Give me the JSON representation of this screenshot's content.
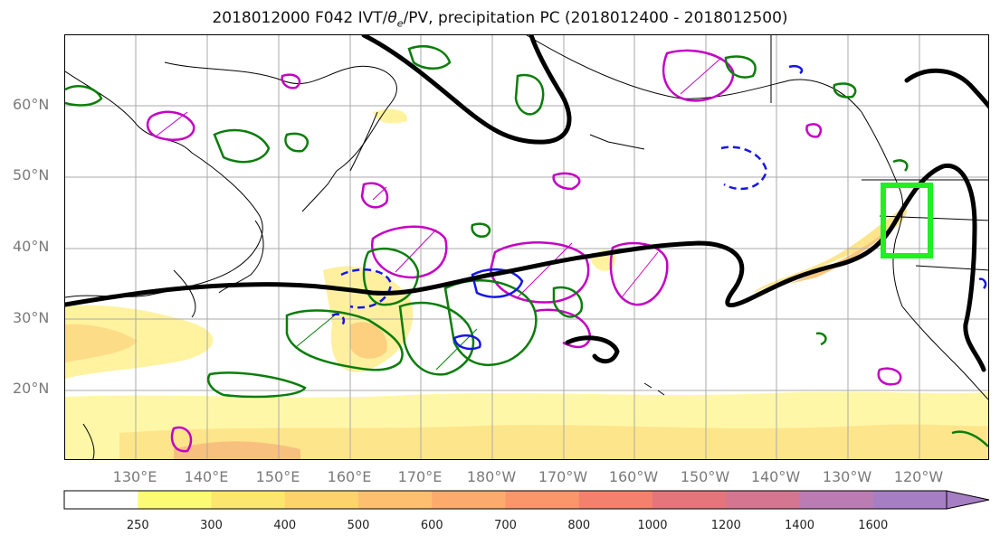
{
  "title": {
    "prefix": "2018012000 F042 IVT/",
    "theta": "θ",
    "sub": "e",
    "suffix": "/PV, precipitation PC (2018012400 - 2018012500)"
  },
  "lat_labels": [
    "60°N",
    "50°N",
    "40°N",
    "30°N",
    "20°N"
  ],
  "lon_labels": [
    "130°E",
    "140°E",
    "150°E",
    "160°E",
    "170°E",
    "180°W",
    "170°W",
    "160°W",
    "150°W",
    "140°W",
    "130°W",
    "120°W"
  ],
  "colorbar": {
    "ticks": [
      "250",
      "300",
      "400",
      "500",
      "600",
      "700",
      "800",
      "1000",
      "1200",
      "1400",
      "1600"
    ],
    "colors": [
      "#ffffff",
      "#fdfb74",
      "#fde66e",
      "#fed36c",
      "#febf6e",
      "#fdab6d",
      "#fb966b",
      "#f3816b",
      "#e4757c",
      "#d47692",
      "#bb7cb3",
      "#a67ec4"
    ]
  },
  "colors": {
    "ivt_low": "#fff5a0",
    "ivt_mid": "#fde08a",
    "ivt_high": "#f9bf7a",
    "pv": "#c400c4",
    "theta_e": "#000000",
    "precip_pos": "#0b7d0b",
    "precip_neg": "#1616e6",
    "target_box": "#22ee22"
  }
}
